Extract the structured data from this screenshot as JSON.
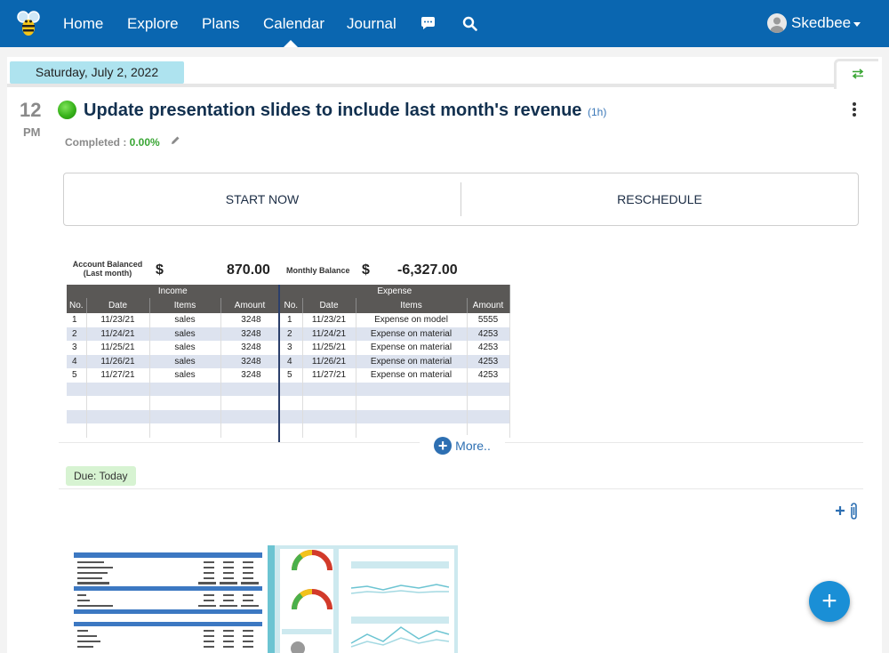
{
  "nav": {
    "items": [
      {
        "label": "Home"
      },
      {
        "label": "Explore"
      },
      {
        "label": "Plans"
      },
      {
        "label": "Calendar"
      },
      {
        "label": "Journal"
      }
    ],
    "active": "Calendar",
    "icons": [
      "chat-icon",
      "search-icon"
    ],
    "user_name": "Skedbee"
  },
  "date_header": "Saturday, July 2, 2022",
  "task": {
    "hour": "12",
    "ampm": "PM",
    "title": "Update presentation slides to include last month's revenue",
    "duration": "(1h)",
    "completed_label": "Completed : ",
    "completed_value": "0.00%",
    "status_color": "#37b21a",
    "start_label": "START NOW",
    "reschedule_label": "RESCHEDULE",
    "more_label": "More..",
    "due_label": "Due: Today"
  },
  "spreadsheet": {
    "balanced_label_1": "Account Balanced",
    "balanced_label_2": "(Last month)",
    "currency": "$",
    "balanced_value": "870.00",
    "monthly_label": "Monthly Balance",
    "monthly_value": "-6,327.00",
    "income_header": "Income",
    "expense_header": "Expense",
    "income_cols": [
      "No.",
      "Date",
      "Items",
      "Amount"
    ],
    "expense_cols": [
      "No.",
      "Date",
      "Items",
      "Amount"
    ],
    "income_rows": [
      [
        "1",
        "11/23/21",
        "sales",
        "3248"
      ],
      [
        "2",
        "11/24/21",
        "sales",
        "3248"
      ],
      [
        "3",
        "11/25/21",
        "sales",
        "3248"
      ],
      [
        "4",
        "11/26/21",
        "sales",
        "3248"
      ],
      [
        "5",
        "11/27/21",
        "sales",
        "3248"
      ]
    ],
    "expense_rows": [
      [
        "1",
        "11/23/21",
        "Expense on model",
        "5555"
      ],
      [
        "2",
        "11/24/21",
        "Expense on material",
        "4253"
      ],
      [
        "3",
        "11/25/21",
        "Expense on material",
        "4253"
      ],
      [
        "4",
        "11/26/21",
        "Expense on material",
        "4253"
      ],
      [
        "5",
        "11/27/21",
        "Expense on material",
        "4253"
      ]
    ]
  },
  "colors": {
    "navbar": "#0a66b0",
    "accent": "#1a8fd6",
    "date_pill": "#aee3ef",
    "due_badge": "#d7f3d2"
  }
}
